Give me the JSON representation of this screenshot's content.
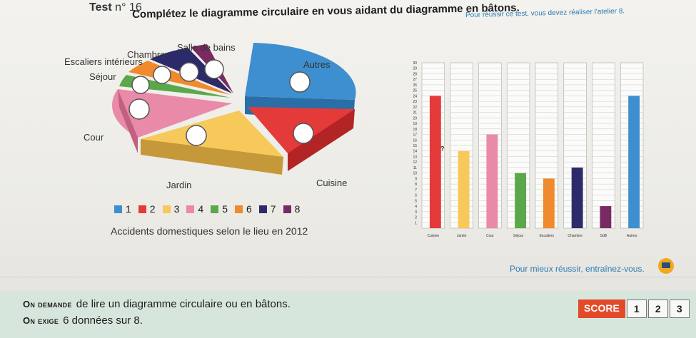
{
  "header": {
    "test_label": "Test",
    "test_number": "n° 16",
    "instruction": "Complétez le diagramme circulaire en vous aidant du diagramme en bâtons.",
    "top_note": "Pour réussir ce test, vous devez réaliser l'atelier 8."
  },
  "pie_labels": {
    "salle_de_bains": "Salle de bains",
    "chambre": "Chambre",
    "escaliers": "Escaliers intérieurs",
    "sejour": "Séjour",
    "autres": "Autres",
    "cour": "Cour",
    "jardin": "Jardin",
    "cuisine": "Cuisine"
  },
  "legend": [
    {
      "label": "1",
      "color": "#3d8fcf"
    },
    {
      "label": "2",
      "color": "#e53a3a"
    },
    {
      "label": "3",
      "color": "#f7c95a"
    },
    {
      "label": "4",
      "color": "#e98aa8"
    },
    {
      "label": "5",
      "color": "#5aa84a"
    },
    {
      "label": "6",
      "color": "#f08a2c"
    },
    {
      "label": "7",
      "color": "#2d2a6a"
    },
    {
      "label": "8",
      "color": "#7a2a62"
    }
  ],
  "pie_caption": "Accidents domestiques selon le lieu en 2012",
  "chart_data": [
    {
      "type": "pie",
      "title": "Accidents domestiques selon le lieu en 2012",
      "categories": [
        "Autres",
        "Cuisine",
        "Jardin",
        "Cour",
        "Séjour",
        "Escaliers intérieurs",
        "Chambre",
        "Salle de bains"
      ]
    },
    {
      "type": "bar",
      "categories": [
        "Cuisine",
        "Jardin",
        "Cour",
        "Séjour",
        "Escaliers",
        "Chambre",
        "SdB",
        "Autres"
      ],
      "values": [
        24,
        14,
        17,
        10,
        9,
        11,
        4,
        24
      ],
      "ylim": [
        0,
        30
      ],
      "yticks": [
        "1",
        "2",
        "3",
        "4",
        "5",
        "6",
        "7",
        "8",
        "9",
        "10",
        "11",
        "12",
        "13",
        "14",
        "15",
        "16",
        "17",
        "18",
        "19",
        "20",
        "21",
        "22",
        "23",
        "24",
        "25",
        "26",
        "27",
        "28",
        "29",
        "30"
      ],
      "colors": [
        "#e53a3a",
        "#f7c95a",
        "#e98aa8",
        "#5aa84a",
        "#f08a2c",
        "#2d2a6a",
        "#7a2a62",
        "#3d8fcf"
      ],
      "bar_annotation": "?"
    }
  ],
  "footer": {
    "line1_lead": "On demande",
    "line1_rest": "de lire un diagramme circulaire ou en bâtons.",
    "line2_lead": "On exige",
    "line2_rest": "6 données sur 8.",
    "improve_text": "Pour mieux réussir, entraînez-vous.",
    "score_label": "SCORE",
    "score_values": [
      "1",
      "2",
      "3"
    ]
  }
}
